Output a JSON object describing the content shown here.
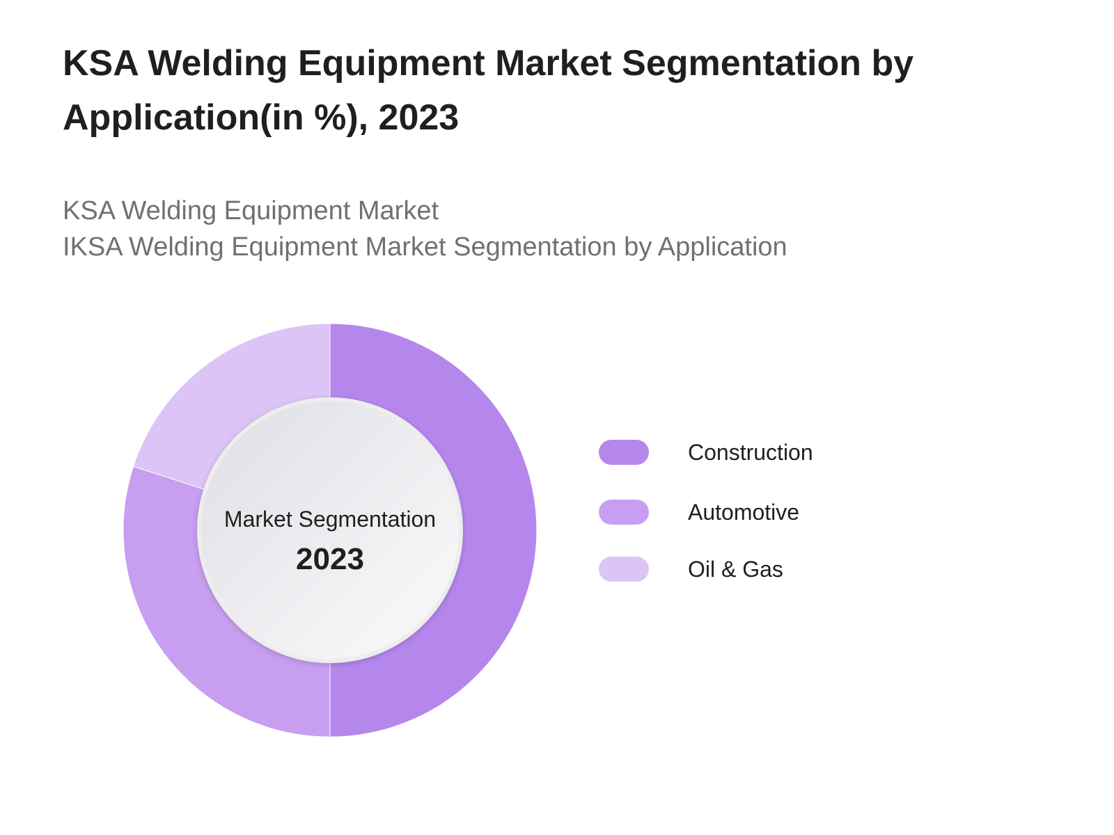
{
  "header": {
    "title": "KSA Welding Equipment Market Segmentation by Application(in %), 2023",
    "subtitle_line1": "KSA Welding Equipment Market",
    "subtitle_line2": "IKSA Welding Equipment Market Segmentation by Application"
  },
  "center_label": {
    "line1": "Market Segmentation",
    "line2": "2023"
  },
  "chart_data": {
    "type": "pie",
    "variant": "donut",
    "title": "KSA Welding Equipment Market Segmentation by Application(in %), 2023",
    "categories": [
      "Construction",
      "Automotive",
      "Oil & Gas"
    ],
    "values": [
      50,
      30,
      20
    ],
    "unit": "%",
    "colors": [
      "#b586ec",
      "#c79ef0",
      "#dcc4f6"
    ],
    "legend": "right",
    "start_angle": "12 o'clock",
    "direction": "clockwise"
  }
}
